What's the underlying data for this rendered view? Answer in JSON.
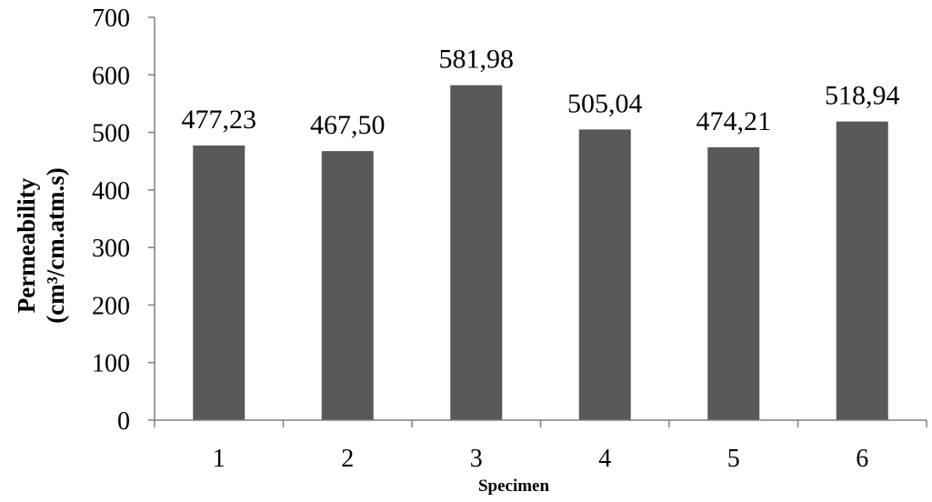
{
  "chart_data": {
    "type": "bar",
    "categories": [
      "1",
      "2",
      "3",
      "4",
      "5",
      "6"
    ],
    "values": [
      477.23,
      467.5,
      581.98,
      505.04,
      474.21,
      518.94
    ],
    "data_labels": [
      "477,23",
      "467,50",
      "581,98",
      "505,04",
      "474,21",
      "518,94"
    ],
    "title": "",
    "xlabel": "Specimen",
    "ylabel_line1": "Permeability",
    "ylabel_line2": "(cm³/cm.atm.s)",
    "ylim": [
      0,
      700
    ],
    "yticks": [
      0,
      100,
      200,
      300,
      400,
      500,
      600,
      700
    ],
    "grid": false,
    "legend": "none",
    "bar_color": "#595959",
    "axis_color": "#7f7f7f"
  }
}
